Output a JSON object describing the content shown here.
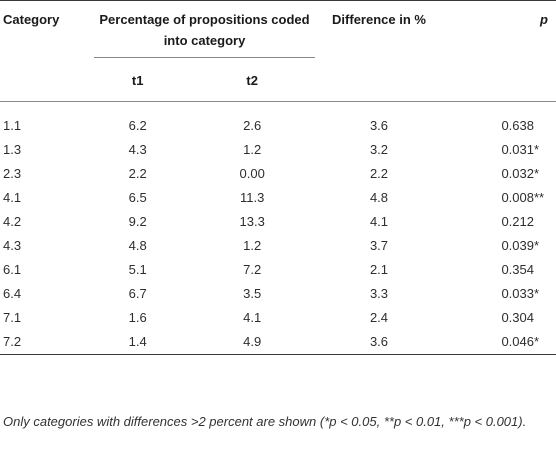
{
  "table": {
    "headers": {
      "category": "Category",
      "percentage": "Percentage of propositions coded into category",
      "difference": "Difference in %",
      "p": "p",
      "t1": "t1",
      "t2": "t2"
    },
    "rows": [
      {
        "category": "1.1",
        "t1": "6.2",
        "t2": "2.6",
        "difference": "3.6",
        "p": "0.638",
        "sig": ""
      },
      {
        "category": "1.3",
        "t1": "4.3",
        "t2": "1.2",
        "difference": "3.2",
        "p": "0.031",
        "sig": "*"
      },
      {
        "category": "2.3",
        "t1": "2.2",
        "t2": "0.00",
        "difference": "2.2",
        "p": "0.032",
        "sig": "*"
      },
      {
        "category": "4.1",
        "t1": "6.5",
        "t2": "11.3",
        "difference": "4.8",
        "p": "0.008",
        "sig": "**"
      },
      {
        "category": "4.2",
        "t1": "9.2",
        "t2": "13.3",
        "difference": "4.1",
        "p": "0.212",
        "sig": ""
      },
      {
        "category": "4.3",
        "t1": "4.8",
        "t2": "1.2",
        "difference": "3.7",
        "p": "0.039",
        "sig": "*"
      },
      {
        "category": "6.1",
        "t1": "5.1",
        "t2": "7.2",
        "difference": "2.1",
        "p": "0.354",
        "sig": ""
      },
      {
        "category": "6.4",
        "t1": "6.7",
        "t2": "3.5",
        "difference": "3.3",
        "p": "0.033",
        "sig": "*"
      },
      {
        "category": "7.1",
        "t1": "1.6",
        "t2": "4.1",
        "difference": "2.4",
        "p": "0.304",
        "sig": ""
      },
      {
        "category": "7.2",
        "t1": "1.4",
        "t2": "4.9",
        "difference": "3.6",
        "p": "0.046",
        "sig": "*"
      }
    ]
  },
  "footnote": "Only categories with differences >2 percent are shown (*p < 0.05, **p < 0.01, ***p < 0.001)."
}
